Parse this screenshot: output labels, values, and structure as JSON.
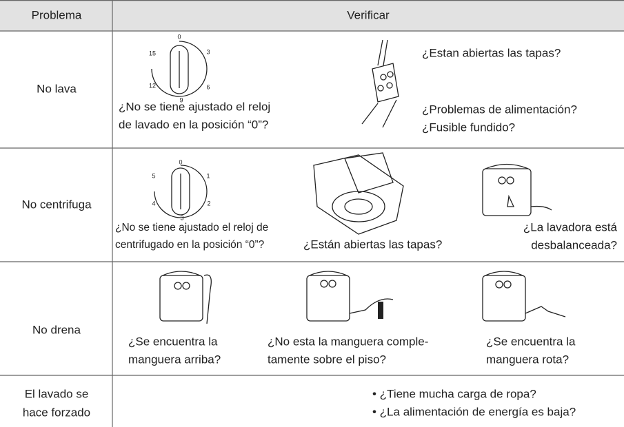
{
  "header": {
    "problem": "Problema",
    "check": "Verificar"
  },
  "rows": [
    {
      "problem": [
        "No lava"
      ],
      "dial": [
        0,
        3,
        6,
        9,
        12,
        15
      ],
      "items": [
        [
          "¿No se tiene ajustado el reloj",
          "de lavado en la posición “0”?"
        ],
        [
          "¿Estan abiertas las tapas?"
        ],
        [
          "¿Problemas de alimentación?",
          "¿Fusible fundido?"
        ]
      ]
    },
    {
      "problem": [
        "No centrifuga"
      ],
      "dial": [
        0,
        1,
        2,
        3,
        4,
        5
      ],
      "items": [
        [
          "¿No se tiene ajustado el reloj de",
          "centrifugado en la posición “0”?"
        ],
        [
          "¿Están abiertas las tapas?"
        ],
        [
          "¿La lavadora está",
          "desbalanceada?"
        ]
      ]
    },
    {
      "problem": [
        "No drena"
      ],
      "items": [
        [
          "¿Se encuentra la",
          "manguera arriba?"
        ],
        [
          "¿No esta la manguera comple-",
          "tamente sobre el piso?"
        ],
        [
          "¿Se encuentra la",
          "manguera rota?"
        ]
      ]
    },
    {
      "problem": [
        "El lavado se",
        "hace forzado"
      ],
      "items": [
        [
          "• ¿Tiene mucha carga de ropa?",
          "• ¿La alimentación de energía es baja?"
        ]
      ]
    }
  ]
}
